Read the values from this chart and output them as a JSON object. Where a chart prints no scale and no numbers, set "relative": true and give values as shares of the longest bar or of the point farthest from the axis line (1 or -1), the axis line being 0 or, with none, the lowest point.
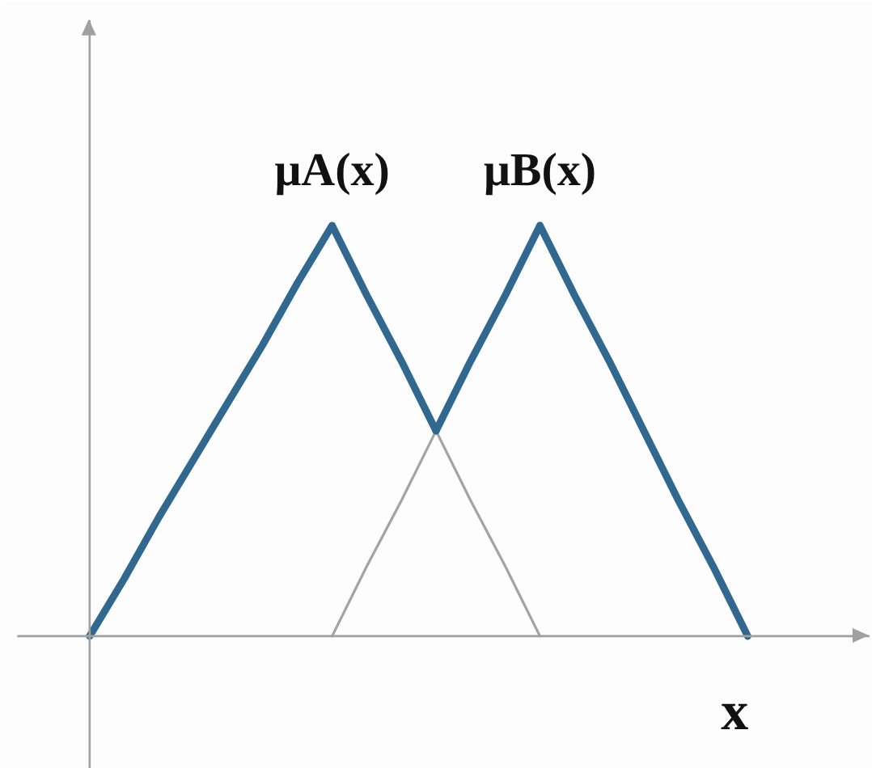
{
  "chart_data": {
    "type": "line",
    "relative": true,
    "xlabel": "x",
    "categories": [
      null,
      null,
      null,
      null,
      null,
      null,
      null,
      null,
      null,
      null,
      null,
      null,
      null,
      null,
      null,
      null,
      null,
      null,
      null,
      null
    ],
    "series": [
      {
        "name": "μA(x)",
        "color": "#30688f",
        "values": [
          0,
          0.14,
          0.29,
          0.43,
          0.57,
          0.71,
          0.86,
          1,
          0.83,
          0.67,
          0.5,
          null,
          null,
          null,
          null,
          null,
          null,
          null,
          null,
          null
        ]
      },
      {
        "color": "#a3a3a3",
        "values": [
          null,
          null,
          null,
          null,
          null,
          null,
          null,
          null,
          null,
          null,
          0.5,
          0.33,
          0.17,
          0,
          null,
          null,
          null,
          null,
          null,
          null
        ]
      },
      {
        "color": "#a3a3a3",
        "values": [
          null,
          null,
          null,
          null,
          null,
          null,
          null,
          0,
          0.17,
          0.33,
          0.5,
          null,
          null,
          null,
          null,
          null,
          null,
          null,
          null,
          null
        ]
      },
      {
        "name": "μB(x)",
        "color": "#30688f",
        "values": [
          null,
          null,
          null,
          null,
          null,
          null,
          null,
          null,
          null,
          null,
          0.5,
          0.67,
          0.83,
          1,
          0.83,
          0.67,
          0.5,
          0.33,
          0.17,
          0
        ]
      }
    ]
  }
}
